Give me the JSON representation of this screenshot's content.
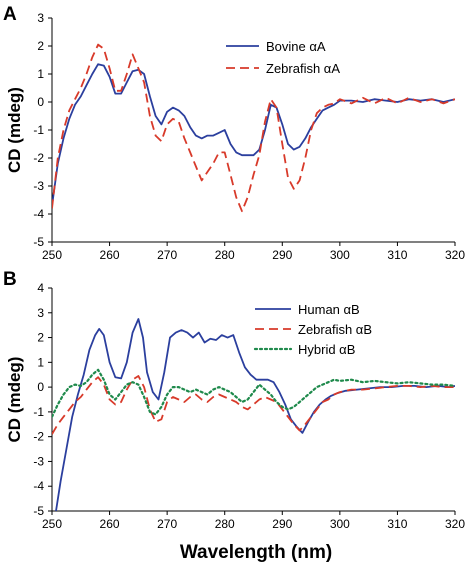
{
  "figure": {
    "xlabel": "Wavelength (nm)"
  },
  "chart_data": [
    {
      "panel": "A",
      "type": "line",
      "xlabel": "",
      "ylabel": "CD (mdeg)",
      "xlim": [
        250,
        320
      ],
      "ylim": [
        -5,
        3
      ],
      "xticks": [
        250,
        260,
        270,
        280,
        290,
        300,
        310,
        320
      ],
      "yticks": [
        3,
        2,
        1,
        0,
        -1,
        -2,
        -3,
        -4,
        -5
      ],
      "legend": "top-right",
      "grid": false,
      "series": [
        {
          "name": "Bovine αA",
          "color": "#2b3f9e",
          "dash": "solid",
          "x": [
            250,
            251,
            252,
            253,
            254,
            255,
            256,
            257,
            258,
            259,
            260,
            261,
            262,
            263,
            264,
            265,
            266,
            267,
            268,
            269,
            270,
            271,
            272,
            273,
            274,
            275,
            276,
            277,
            278,
            279,
            280,
            281,
            282,
            283,
            284,
            285,
            286,
            287,
            288,
            289,
            290,
            291,
            292,
            293,
            294,
            295,
            296,
            297,
            298,
            299,
            300,
            302,
            304,
            306,
            308,
            310,
            312,
            314,
            316,
            318,
            320
          ],
          "y": [
            -3.7,
            -2.2,
            -1.3,
            -0.6,
            -0.1,
            0.2,
            0.6,
            1.0,
            1.35,
            1.3,
            0.9,
            0.3,
            0.3,
            0.7,
            1.1,
            1.15,
            1.0,
            0.2,
            -0.5,
            -0.8,
            -0.35,
            -0.2,
            -0.3,
            -0.5,
            -0.9,
            -1.2,
            -1.3,
            -1.2,
            -1.2,
            -1.1,
            -1.0,
            -1.5,
            -1.8,
            -1.9,
            -1.9,
            -1.9,
            -1.7,
            -1.0,
            -0.1,
            -0.2,
            -0.8,
            -1.5,
            -1.7,
            -1.6,
            -1.3,
            -0.9,
            -0.6,
            -0.3,
            -0.2,
            -0.1,
            0.05,
            0.05,
            0.0,
            0.1,
            0.05,
            0.0,
            0.1,
            0.05,
            0.1,
            0.0,
            0.1
          ]
        },
        {
          "name": "Zebrafish αA",
          "color": "#d83a2a",
          "dash": "dashed",
          "x": [
            250,
            251,
            252,
            253,
            254,
            255,
            256,
            257,
            258,
            259,
            260,
            261,
            262,
            263,
            264,
            265,
            266,
            267,
            268,
            269,
            270,
            271,
            272,
            273,
            274,
            275,
            276,
            277,
            278,
            279,
            280,
            281,
            282,
            283,
            284,
            285,
            286,
            287,
            288,
            289,
            290,
            291,
            292,
            293,
            294,
            295,
            296,
            297,
            298,
            299,
            300,
            302,
            304,
            306,
            308,
            310,
            312,
            314,
            316,
            318,
            320
          ],
          "y": [
            -3.8,
            -2.0,
            -1.0,
            -0.3,
            0.1,
            0.5,
            1.0,
            1.6,
            2.05,
            1.9,
            1.2,
            0.4,
            0.4,
            1.0,
            1.7,
            1.2,
            0.7,
            -0.5,
            -1.2,
            -1.4,
            -0.8,
            -0.6,
            -0.7,
            -1.3,
            -1.8,
            -2.3,
            -2.8,
            -2.5,
            -2.2,
            -1.8,
            -1.8,
            -2.6,
            -3.4,
            -3.9,
            -3.4,
            -2.6,
            -1.9,
            -0.7,
            0.1,
            -0.2,
            -1.5,
            -2.7,
            -3.1,
            -2.8,
            -2.0,
            -1.0,
            -0.4,
            -0.2,
            -0.1,
            -0.05,
            0.1,
            -0.05,
            0.15,
            -0.05,
            0.15,
            -0.05,
            0.15,
            0.0,
            0.1,
            -0.05,
            0.1
          ]
        }
      ]
    },
    {
      "panel": "B",
      "type": "line",
      "xlabel": "Wavelength (nm)",
      "ylabel": "CD (mdeg)",
      "xlim": [
        250,
        320
      ],
      "ylim": [
        -5,
        4
      ],
      "xticks": [
        250,
        260,
        270,
        280,
        290,
        300,
        310,
        320
      ],
      "yticks": [
        4,
        3,
        2,
        1,
        0,
        -1,
        -2,
        -3,
        -4,
        -5
      ],
      "legend": "top-right",
      "grid": false,
      "series": [
        {
          "name": "Human αB",
          "color": "#2b3f9e",
          "dash": "solid",
          "x": [
            250.7,
            251.5,
            252.5,
            253.5,
            254.5,
            255.5,
            256.5,
            257.5,
            258.2,
            259,
            260,
            261,
            262,
            263,
            264,
            265,
            265.8,
            266.5,
            267.5,
            268.5,
            269.5,
            270.5,
            271.5,
            272.5,
            273.5,
            274.5,
            275.5,
            276.5,
            277.5,
            278.5,
            279.5,
            280.5,
            281.5,
            282.5,
            283.5,
            284.5,
            285.5,
            286.5,
            287.5,
            288.5,
            289.5,
            290.5,
            291.5,
            292.5,
            293.5,
            294.5,
            295.5,
            296.5,
            297.5,
            298.5,
            299.5,
            301,
            303,
            305,
            307,
            309,
            311,
            313,
            315,
            317,
            319,
            320
          ],
          "y": [
            -5,
            -3.8,
            -2.5,
            -1.2,
            -0.3,
            0.5,
            1.5,
            2.1,
            2.35,
            2.1,
            1.0,
            0.4,
            0.35,
            1.0,
            2.2,
            2.75,
            2.0,
            0.6,
            -0.2,
            -0.5,
            0.6,
            2.0,
            2.2,
            2.3,
            2.2,
            2.0,
            2.2,
            1.8,
            1.95,
            1.9,
            2.1,
            2.0,
            2.1,
            1.4,
            0.8,
            0.5,
            0.3,
            0.3,
            0.3,
            0.2,
            -0.2,
            -0.7,
            -1.3,
            -1.6,
            -1.85,
            -1.4,
            -1.0,
            -0.7,
            -0.5,
            -0.35,
            -0.25,
            -0.15,
            -0.1,
            -0.05,
            0.0,
            0.0,
            0.05,
            0.05,
            0.0,
            0.05,
            0.0,
            0.05
          ]
        },
        {
          "name": "Zebrafish αB",
          "color": "#d83a2a",
          "dash": "dashed",
          "x": [
            250,
            251,
            252,
            253,
            254,
            255,
            256,
            257,
            258,
            259,
            260,
            261,
            262,
            263,
            264,
            265,
            266,
            267,
            268,
            269,
            270,
            271,
            272,
            273,
            274,
            275,
            276,
            277,
            278,
            279,
            280,
            281,
            282,
            283,
            284,
            285,
            286,
            287,
            288,
            289,
            290,
            291,
            292,
            293,
            294,
            295,
            296,
            297,
            298,
            299,
            300,
            302,
            304,
            306,
            308,
            310,
            312,
            314,
            316,
            318,
            320
          ],
          "y": [
            -1.9,
            -1.5,
            -1.2,
            -0.9,
            -0.6,
            -0.4,
            -0.1,
            0.2,
            0.4,
            0.1,
            -0.5,
            -0.7,
            -0.6,
            -0.1,
            0.3,
            0.45,
            0.0,
            -0.9,
            -1.4,
            -1.3,
            -0.6,
            -0.4,
            -0.5,
            -0.6,
            -0.4,
            -0.3,
            -0.5,
            -0.6,
            -0.4,
            -0.3,
            -0.4,
            -0.5,
            -0.6,
            -0.8,
            -0.9,
            -0.7,
            -0.5,
            -0.4,
            -0.5,
            -0.6,
            -0.9,
            -1.2,
            -1.5,
            -1.75,
            -1.5,
            -1.2,
            -0.9,
            -0.6,
            -0.5,
            -0.3,
            -0.2,
            -0.1,
            -0.1,
            -0.05,
            0.0,
            0.05,
            0.05,
            0.0,
            0.05,
            0.0,
            0.0
          ]
        },
        {
          "name": "Hybrid αB",
          "color": "#1f8a4c",
          "dash": "dotted",
          "x": [
            250,
            251,
            252,
            253,
            254,
            255,
            256,
            257,
            258,
            259,
            260,
            261,
            262,
            263,
            264,
            265,
            266,
            267,
            268,
            269,
            270,
            271,
            272,
            273,
            274,
            275,
            276,
            277,
            278,
            279,
            280,
            281,
            282,
            283,
            284,
            285,
            286,
            287,
            288,
            289,
            290,
            291,
            292,
            293,
            294,
            295,
            296,
            297,
            298,
            299,
            300,
            302,
            304,
            306,
            308,
            310,
            312,
            314,
            316,
            318,
            320
          ],
          "y": [
            -1.2,
            -0.7,
            -0.3,
            0.0,
            0.1,
            0.05,
            0.2,
            0.5,
            0.7,
            0.3,
            -0.3,
            -0.5,
            -0.2,
            0.1,
            0.2,
            0.1,
            -0.4,
            -1.0,
            -1.1,
            -0.8,
            -0.3,
            0.0,
            0.0,
            -0.1,
            -0.2,
            -0.1,
            -0.2,
            -0.3,
            -0.1,
            0.0,
            -0.1,
            -0.2,
            -0.4,
            -0.6,
            -0.5,
            -0.2,
            0.1,
            -0.1,
            -0.3,
            -0.6,
            -0.8,
            -0.9,
            -0.8,
            -0.6,
            -0.4,
            -0.2,
            0.0,
            0.1,
            0.2,
            0.3,
            0.25,
            0.3,
            0.2,
            0.25,
            0.2,
            0.15,
            0.2,
            0.15,
            0.1,
            0.1,
            0.05
          ]
        }
      ]
    }
  ]
}
